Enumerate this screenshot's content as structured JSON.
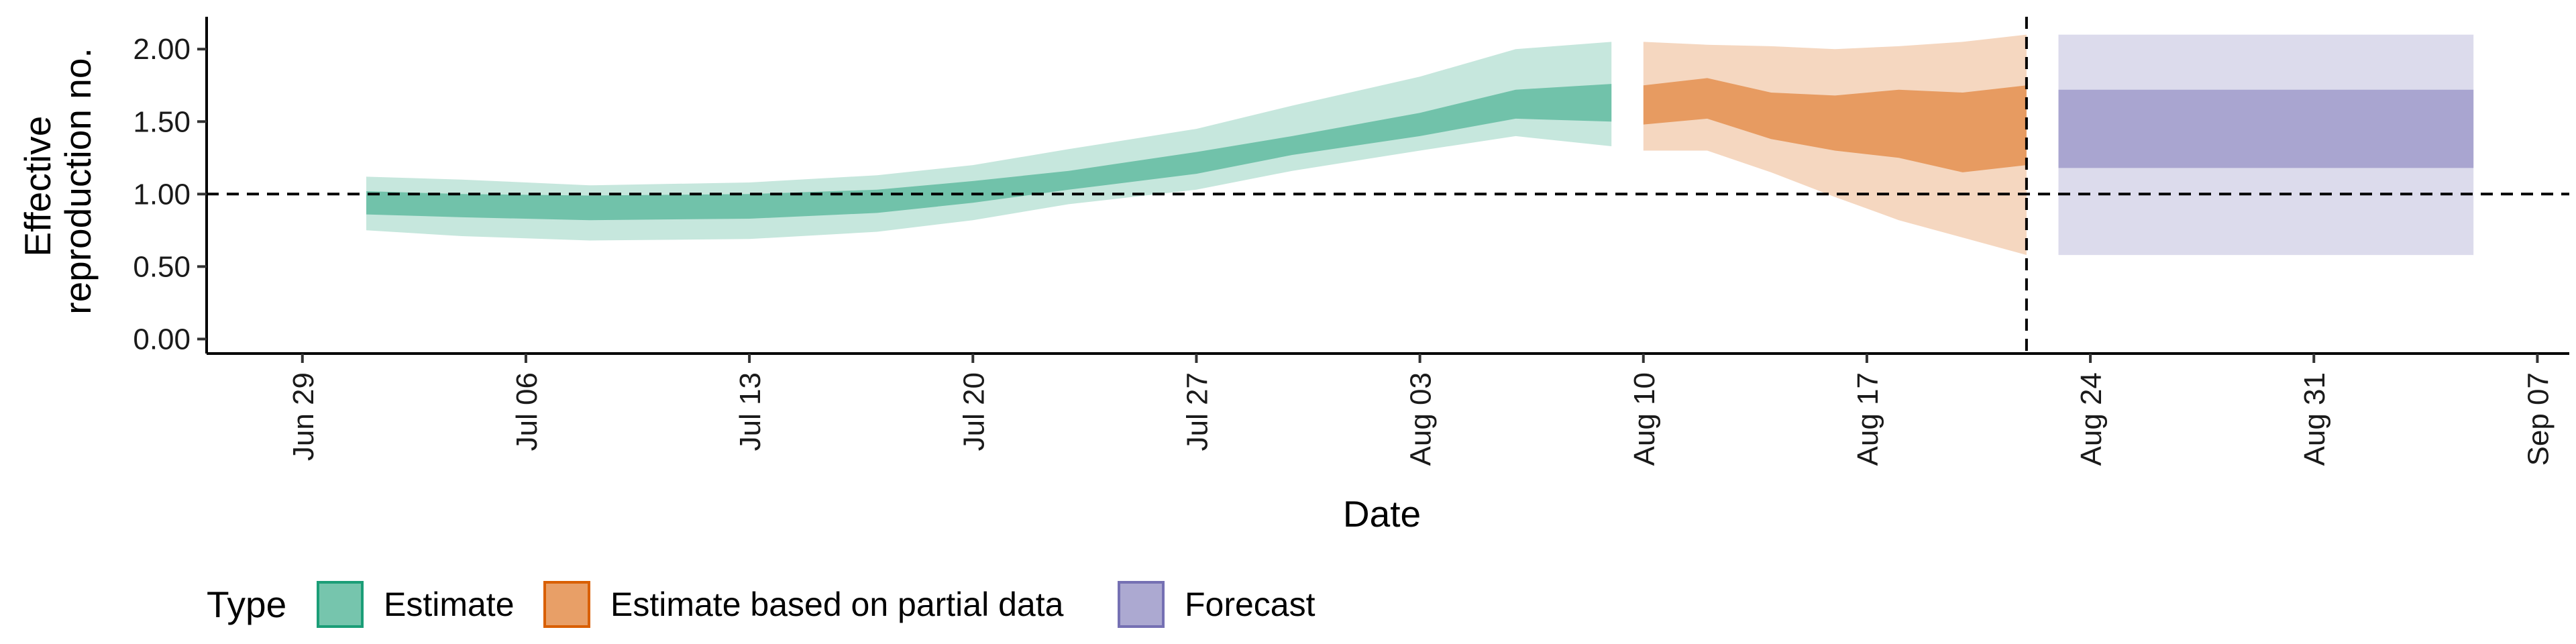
{
  "chart_data": {
    "type": "area",
    "xlabel": "Date",
    "ylabel": "Effective reproduction no.",
    "ylabel_lines": [
      "Effective",
      "reproduction no."
    ],
    "x_ticks": [
      "Jun 29",
      "Jul 06",
      "Jul 13",
      "Jul 20",
      "Jul 27",
      "Aug 03",
      "Aug 10",
      "Aug 17",
      "Aug 24",
      "Aug 31",
      "Sep 07"
    ],
    "x_range": [
      "2020-06-26",
      "2020-09-08"
    ],
    "y_ticks": [
      "0.00",
      "0.50",
      "1.00",
      "1.50",
      "2.00"
    ],
    "ylim": [
      -0.1,
      2.2
    ],
    "reference_lines": {
      "horizontal_y": 1.0,
      "vertical_date": "2020-08-22"
    },
    "grid": false,
    "legend": {
      "title": "Type",
      "position": "bottom-left",
      "entries": [
        {
          "label": "Estimate",
          "color": "#1b9e77"
        },
        {
          "label": "Estimate based on partial data",
          "color": "#d95f02"
        },
        {
          "label": "Forecast",
          "color": "#7570b3"
        }
      ]
    },
    "series": [
      {
        "type": "Estimate",
        "color": "#1b9e77",
        "dates": [
          "2020-07-01",
          "2020-07-04",
          "2020-07-08",
          "2020-07-13",
          "2020-07-17",
          "2020-07-20",
          "2020-07-23",
          "2020-07-27",
          "2020-07-30",
          "2020-08-03",
          "2020-08-06",
          "2020-08-09"
        ],
        "median": [
          0.95,
          0.92,
          0.91,
          0.92,
          0.95,
          1.01,
          1.09,
          1.21,
          1.33,
          1.48,
          1.6,
          1.63
        ],
        "lower_50": [
          0.86,
          0.84,
          0.82,
          0.83,
          0.87,
          0.94,
          1.03,
          1.14,
          1.27,
          1.4,
          1.52,
          1.5
        ],
        "upper_50": [
          1.02,
          1.0,
          0.99,
          1.0,
          1.03,
          1.09,
          1.16,
          1.29,
          1.4,
          1.56,
          1.72,
          1.76
        ],
        "lower_90": [
          0.75,
          0.71,
          0.68,
          0.69,
          0.74,
          0.82,
          0.93,
          1.03,
          1.16,
          1.3,
          1.4,
          1.33
        ],
        "upper_90": [
          1.12,
          1.1,
          1.06,
          1.08,
          1.13,
          1.2,
          1.31,
          1.45,
          1.61,
          1.81,
          2.0,
          2.05
        ]
      },
      {
        "type": "Estimate based on partial data",
        "color": "#d95f02",
        "dates": [
          "2020-08-10",
          "2020-08-12",
          "2020-08-14",
          "2020-08-16",
          "2020-08-18",
          "2020-08-20",
          "2020-08-22"
        ],
        "median": [
          1.62,
          1.68,
          1.58,
          1.55,
          1.52,
          1.47,
          1.5
        ],
        "lower_50": [
          1.48,
          1.52,
          1.38,
          1.3,
          1.25,
          1.15,
          1.2
        ],
        "upper_50": [
          1.75,
          1.8,
          1.7,
          1.68,
          1.72,
          1.7,
          1.75
        ],
        "lower_90": [
          1.3,
          1.3,
          1.15,
          0.98,
          0.82,
          0.7,
          0.58
        ],
        "upper_90": [
          2.05,
          2.03,
          2.02,
          2.0,
          2.02,
          2.05,
          2.1
        ]
      },
      {
        "type": "Forecast",
        "color": "#7570b3",
        "dates": [
          "2020-08-23",
          "2020-09-05"
        ],
        "lower_50": [
          1.18,
          1.18
        ],
        "upper_50": [
          1.72,
          1.72
        ],
        "lower_90": [
          0.58,
          0.58
        ],
        "upper_90": [
          2.1,
          2.1
        ]
      }
    ]
  }
}
